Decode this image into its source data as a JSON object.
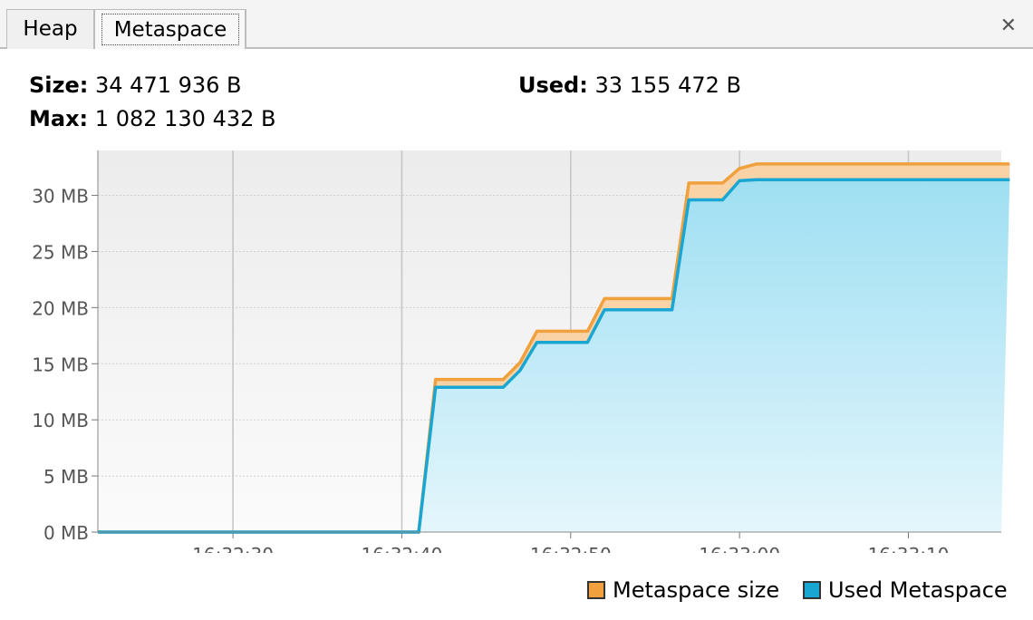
{
  "tabs": [
    {
      "label": "Heap",
      "active": false
    },
    {
      "label": "Metaspace",
      "active": true
    }
  ],
  "close_icon": "close-icon",
  "stats": {
    "size_label": "Size:",
    "size_value": "34 471 936 B",
    "used_label": "Used:",
    "used_value": "33 155 472 B",
    "max_label": "Max:",
    "max_value": "1 082 130 432 B"
  },
  "chart_data": {
    "type": "area",
    "x_ticks": [
      "16:32:30",
      "16:32:40",
      "16:32:50",
      "16:33:00",
      "16:33:10"
    ],
    "y_ticks": [
      "0 MB",
      "5 MB",
      "10 MB",
      "15 MB",
      "20 MB",
      "25 MB",
      "30 MB"
    ],
    "ylim": [
      0,
      34
    ],
    "grid": true,
    "legend_position": "bottom-right",
    "time_axis": [
      "16:32:22",
      "16:32:41",
      "16:32:42",
      "16:32:46",
      "16:32:47",
      "16:32:48",
      "16:32:51",
      "16:32:52",
      "16:32:56",
      "16:32:57",
      "16:32:59",
      "16:33:00",
      "16:33:01",
      "16:33:16"
    ],
    "series": [
      {
        "name": "Metaspace size",
        "color": "#f0a03c",
        "values": [
          0,
          0,
          13.6,
          13.6,
          15.1,
          17.9,
          17.9,
          20.8,
          20.8,
          31.1,
          31.1,
          32.4,
          32.8,
          32.8
        ]
      },
      {
        "name": "Used Metaspace",
        "color": "#1aa6d2",
        "values": [
          0,
          0,
          12.9,
          12.9,
          14.4,
          16.9,
          16.9,
          19.8,
          19.8,
          29.6,
          29.6,
          31.3,
          31.4,
          31.4
        ]
      }
    ]
  }
}
